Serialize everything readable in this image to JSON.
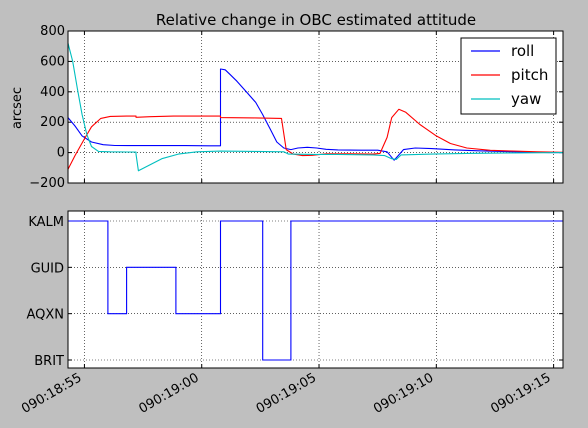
{
  "chart_data": [
    {
      "type": "line",
      "title": "Relative change in OBC estimated attitude",
      "ylabel": "arcsec",
      "xlim": [
        "090:18:54.3",
        "090:19:15.4"
      ],
      "ylim": [
        -200,
        800
      ],
      "yticks": [
        -200,
        0,
        200,
        400,
        600,
        800
      ],
      "ytick_labels": [
        "−200",
        "0",
        "200",
        "400",
        "600",
        "800"
      ],
      "grid": true,
      "legend": "top-right",
      "series": [
        {
          "name": "roll",
          "color": "#0000ff",
          "points": [
            [
              0,
              230
            ],
            [
              0.3,
              175
            ],
            [
              0.6,
              110
            ],
            [
              1.0,
              70
            ],
            [
              1.5,
              52
            ],
            [
              2.0,
              47
            ],
            [
              3.0,
              46
            ],
            [
              5.0,
              46
            ],
            [
              6.0,
              45
            ],
            [
              6.5,
              45
            ],
            [
              6.5,
              550
            ],
            [
              6.7,
              545
            ],
            [
              6.9,
              515
            ],
            [
              7.2,
              470
            ],
            [
              7.6,
              400
            ],
            [
              8.0,
              330
            ],
            [
              8.3,
              250
            ],
            [
              8.6,
              160
            ],
            [
              8.9,
              70
            ],
            [
              9.2,
              30
            ],
            [
              9.5,
              20
            ],
            [
              9.8,
              30
            ],
            [
              10.2,
              35
            ],
            [
              10.6,
              30
            ],
            [
              11.0,
              22
            ],
            [
              11.5,
              18
            ],
            [
              12.5,
              16
            ],
            [
              13.2,
              16
            ],
            [
              13.6,
              5
            ],
            [
              13.9,
              -50
            ],
            [
              14.3,
              20
            ],
            [
              14.8,
              30
            ],
            [
              15.5,
              26
            ],
            [
              16.5,
              18
            ],
            [
              17.5,
              12
            ],
            [
              18.5,
              7
            ],
            [
              19.5,
              3
            ],
            [
              20.5,
              0
            ],
            [
              21.1,
              0
            ]
          ]
        },
        {
          "name": "pitch",
          "color": "#ff0000",
          "points": [
            [
              0,
              -110
            ],
            [
              0.3,
              -20
            ],
            [
              0.7,
              90
            ],
            [
              1.0,
              170
            ],
            [
              1.4,
              225
            ],
            [
              1.8,
              238
            ],
            [
              2.5,
              240
            ],
            [
              2.9,
              240
            ],
            [
              2.9,
              232
            ],
            [
              3.5,
              236
            ],
            [
              4.5,
              240
            ],
            [
              5.5,
              240
            ],
            [
              6.5,
              240
            ],
            [
              6.5,
              230
            ],
            [
              8.0,
              228
            ],
            [
              9.1,
              225
            ],
            [
              9.3,
              20
            ],
            [
              9.6,
              -10
            ],
            [
              10.0,
              -20
            ],
            [
              10.4,
              -18
            ],
            [
              11.0,
              -8
            ],
            [
              12.0,
              -8
            ],
            [
              13.0,
              -10
            ],
            [
              13.3,
              -5
            ],
            [
              13.6,
              100
            ],
            [
              13.8,
              230
            ],
            [
              14.1,
              285
            ],
            [
              14.4,
              265
            ],
            [
              15.0,
              185
            ],
            [
              15.7,
              110
            ],
            [
              16.3,
              60
            ],
            [
              17.0,
              30
            ],
            [
              18.0,
              15
            ],
            [
              19.0,
              10
            ],
            [
              20.0,
              5
            ],
            [
              21.1,
              2
            ]
          ]
        },
        {
          "name": "yaw",
          "color": "#00bfbf",
          "points": [
            [
              0,
              720
            ],
            [
              0.2,
              600
            ],
            [
              0.4,
              420
            ],
            [
              0.6,
              250
            ],
            [
              0.8,
              120
            ],
            [
              1.0,
              40
            ],
            [
              1.3,
              8
            ],
            [
              1.8,
              5
            ],
            [
              2.9,
              3
            ],
            [
              2.9,
              -10
            ],
            [
              3.0,
              -120
            ],
            [
              3.5,
              -80
            ],
            [
              4.0,
              -40
            ],
            [
              4.7,
              -10
            ],
            [
              5.5,
              5
            ],
            [
              6.5,
              10
            ],
            [
              8.0,
              8
            ],
            [
              9.2,
              5
            ],
            [
              9.4,
              -10
            ],
            [
              10.5,
              -12
            ],
            [
              11.5,
              -12
            ],
            [
              13.0,
              -15
            ],
            [
              13.5,
              -20
            ],
            [
              13.8,
              -40
            ],
            [
              14.0,
              -45
            ],
            [
              14.2,
              -15
            ],
            [
              15.5,
              -10
            ],
            [
              17.0,
              -5
            ],
            [
              19.0,
              -2
            ],
            [
              21.1,
              0
            ]
          ]
        }
      ]
    },
    {
      "type": "line",
      "title": "",
      "xlabel": "",
      "ylabel": "",
      "categories": [
        "BRIT",
        "AQXN",
        "GUID",
        "KALM"
      ],
      "xlim": [
        "090:18:54.3",
        "090:19:15.4"
      ],
      "grid": true,
      "xtick_labels": [
        "090:18:55",
        "090:19:00",
        "090:19:05",
        "090:19:10",
        "090:19:15"
      ],
      "xticks_sec": [
        0.7,
        5.7,
        10.7,
        15.7,
        20.7
      ],
      "series": [
        {
          "color": "#0000ff",
          "points": [
            [
              0,
              3
            ],
            [
              1.7,
              3
            ],
            [
              1.7,
              1
            ],
            [
              2.5,
              1
            ],
            [
              2.5,
              2
            ],
            [
              4.6,
              2
            ],
            [
              4.6,
              1
            ],
            [
              6.5,
              1
            ],
            [
              6.5,
              3
            ],
            [
              8.3,
              3
            ],
            [
              8.3,
              0
            ],
            [
              9.5,
              0
            ],
            [
              9.5,
              3
            ],
            [
              21.1,
              3
            ]
          ]
        }
      ]
    }
  ]
}
